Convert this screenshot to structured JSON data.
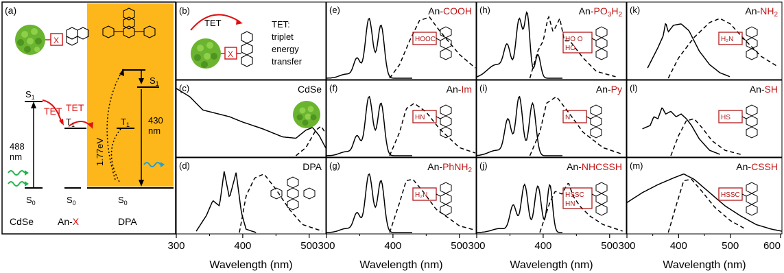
{
  "figure": {
    "axis_label": "Wavelength (nm)",
    "columns": [
      {
        "ticks": [
          "300",
          "400",
          "500"
        ]
      },
      {
        "ticks": [
          "300",
          "400",
          "500"
        ]
      },
      {
        "ticks": [
          "300",
          "400",
          "500"
        ]
      },
      {
        "ticks": [
          "300",
          "400",
          "500",
          "600"
        ]
      }
    ]
  },
  "diagram_a": {
    "panel_label": "(a)",
    "S1_left": "S",
    "S1_left_sub": "1",
    "T1_mid": "T",
    "T1_mid_sub": "1",
    "T1_right": "T",
    "T1_right_sub": "1",
    "S1_right": "S",
    "S1_right_sub": "1",
    "S0_left": "S",
    "S0_left_sub": "0",
    "S0_mid": "S",
    "S0_mid_sub": "0",
    "S0_right": "S",
    "S0_right_sub": "0",
    "tet1": "TET",
    "tet2": "TET",
    "wl488": "488",
    "wl488_unit": "nm",
    "wl430": "430",
    "wl430_unit": "nm",
    "energy": "1.77eV",
    "x_box": "X",
    "label_cdse": "CdSe",
    "label_anx_prefix": "An-",
    "label_anx_x": "X",
    "label_dpa": "DPA",
    "colors": {
      "orange": "#fdb71a",
      "red": "#e01010",
      "green": "#22b24c",
      "cyan": "#1ba0d8",
      "dark_red": "#b01a1a"
    }
  },
  "panel_b": {
    "panel_label": "(b)",
    "tet": "TET",
    "x_box": "X",
    "desc": [
      "TET:",
      "triplet",
      "energy",
      "transfer"
    ]
  },
  "panels": [
    {
      "id": "c",
      "panel_label": "(c)",
      "name": "CdSe"
    },
    {
      "id": "d",
      "panel_label": "(d)",
      "name": "DPA"
    },
    {
      "id": "e",
      "panel_label": "(e)",
      "prefix": "An-",
      "suffix": "COOH",
      "struct": "HOOC"
    },
    {
      "id": "f",
      "panel_label": "(f)",
      "prefix": "An-",
      "suffix": "Im",
      "struct": "HN"
    },
    {
      "id": "g",
      "panel_label": "(g)",
      "prefix": "An-",
      "suffix": "PhNH",
      "suffix_sub": "2",
      "struct": "H₂N"
    },
    {
      "id": "h",
      "panel_label": "(h)",
      "prefix": "An-",
      "suffix": "PO",
      "suffix_sub": "3",
      "suffix_end": "H",
      "suffix_sub2": "2",
      "struct": "HO O",
      "struct2": "HO"
    },
    {
      "id": "i",
      "panel_label": "(i)",
      "prefix": "An-",
      "suffix": "Py",
      "struct": "N"
    },
    {
      "id": "j",
      "panel_label": "(j)",
      "prefix": "An-",
      "suffix": "NHCSSH",
      "struct": "HSSC",
      "struct2": "HN"
    },
    {
      "id": "k",
      "panel_label": "(k)",
      "prefix": "An-",
      "suffix": "NH",
      "suffix_sub": "2",
      "struct": "H₂N"
    },
    {
      "id": "l",
      "panel_label": "(l)",
      "prefix": "An-",
      "suffix": "SH",
      "struct": "HS"
    },
    {
      "id": "m",
      "panel_label": "(m)",
      "prefix": "An-",
      "suffix": "CSSH",
      "struct": "HSSC"
    }
  ],
  "chart_data": {
    "type": "line",
    "xlabel": "Wavelength (nm)",
    "xlim": [
      300,
      600
    ],
    "curves": {
      "anthracene_abs": [
        [
          300,
          0.05
        ],
        [
          320,
          0.06
        ],
        [
          335,
          0.1
        ],
        [
          345,
          0.3
        ],
        [
          350,
          0.42
        ],
        [
          355,
          0.38
        ],
        [
          362,
          0.62
        ],
        [
          366,
          0.88
        ],
        [
          370,
          0.64
        ],
        [
          376,
          0.62
        ],
        [
          382,
          0.78
        ],
        [
          386,
          0.55
        ],
        [
          392,
          0.2
        ],
        [
          400,
          0.04
        ],
        [
          420,
          0.01
        ]
      ],
      "cdse_abs": [
        [
          300,
          1.0
        ],
        [
          320,
          0.88
        ],
        [
          340,
          0.68
        ],
        [
          360,
          0.63
        ],
        [
          380,
          0.58
        ],
        [
          400,
          0.5
        ],
        [
          430,
          0.4
        ],
        [
          460,
          0.28
        ],
        [
          480,
          0.26
        ],
        [
          495,
          0.38
        ],
        [
          505,
          0.42
        ],
        [
          515,
          0.3
        ],
        [
          530,
          0.02
        ]
      ],
      "cdse_pl": [
        [
          480,
          0.0
        ],
        [
          495,
          0.12
        ],
        [
          510,
          0.38
        ],
        [
          518,
          0.44
        ],
        [
          530,
          0.25
        ],
        [
          545,
          0.05
        ],
        [
          560,
          0.0
        ]
      ],
      "dpa_abs": [
        [
          330,
          0.02
        ],
        [
          345,
          0.25
        ],
        [
          355,
          0.48
        ],
        [
          365,
          0.4
        ],
        [
          372,
          0.92
        ],
        [
          380,
          0.52
        ],
        [
          390,
          0.9
        ],
        [
          398,
          0.3
        ],
        [
          405,
          0.05
        ],
        [
          420,
          0.0
        ]
      ],
      "dpa_pl": [
        [
          395,
          0.0
        ],
        [
          405,
          0.55
        ],
        [
          418,
          0.82
        ],
        [
          432,
          0.88
        ],
        [
          450,
          0.65
        ],
        [
          470,
          0.35
        ],
        [
          490,
          0.12
        ],
        [
          520,
          0.02
        ]
      ],
      "cooh_pl": [
        [
          395,
          0.0
        ],
        [
          410,
          0.2
        ],
        [
          425,
          0.55
        ],
        [
          440,
          0.85
        ],
        [
          455,
          0.9
        ],
        [
          470,
          0.7
        ],
        [
          500,
          0.35
        ],
        [
          530,
          0.1
        ],
        [
          560,
          0.02
        ]
      ],
      "im_pl": [
        [
          395,
          0.0
        ],
        [
          410,
          0.35
        ],
        [
          420,
          0.7
        ],
        [
          432,
          0.78
        ],
        [
          450,
          0.65
        ],
        [
          470,
          0.4
        ],
        [
          500,
          0.12
        ],
        [
          530,
          0.02
        ]
      ],
      "phnh2_pl": [
        [
          395,
          0.0
        ],
        [
          410,
          0.45
        ],
        [
          420,
          0.78
        ],
        [
          430,
          0.8
        ],
        [
          445,
          0.62
        ],
        [
          465,
          0.35
        ],
        [
          500,
          0.1
        ],
        [
          530,
          0.02
        ]
      ],
      "po3h2_pl": [
        [
          380,
          0.0
        ],
        [
          392,
          0.4
        ],
        [
          400,
          0.55
        ],
        [
          408,
          0.92
        ],
        [
          415,
          0.68
        ],
        [
          425,
          0.88
        ],
        [
          432,
          0.55
        ],
        [
          440,
          0.55
        ],
        [
          460,
          0.3
        ],
        [
          480,
          0.1
        ],
        [
          510,
          0.02
        ]
      ],
      "py_pl": [
        [
          380,
          0.0
        ],
        [
          395,
          0.35
        ],
        [
          405,
          0.78
        ],
        [
          420,
          0.88
        ],
        [
          440,
          0.62
        ],
        [
          460,
          0.35
        ],
        [
          490,
          0.12
        ],
        [
          520,
          0.02
        ]
      ],
      "nhcssh_pl": [
        [
          395,
          0.0
        ],
        [
          410,
          0.45
        ],
        [
          418,
          0.62
        ],
        [
          428,
          0.58
        ],
        [
          438,
          0.75
        ],
        [
          445,
          0.55
        ],
        [
          455,
          0.4
        ],
        [
          470,
          0.25
        ],
        [
          490,
          0.12
        ],
        [
          520,
          0.02
        ]
      ],
      "nh2_abs": [
        [
          340,
          0.15
        ],
        [
          360,
          0.45
        ],
        [
          370,
          0.62
        ],
        [
          375,
          0.82
        ],
        [
          380,
          0.68
        ],
        [
          390,
          0.78
        ],
        [
          405,
          0.8
        ],
        [
          420,
          0.7
        ],
        [
          440,
          0.4
        ],
        [
          460,
          0.2
        ],
        [
          480,
          0.08
        ],
        [
          500,
          0.02
        ]
      ],
      "nh2_pl": [
        [
          380,
          0.0
        ],
        [
          400,
          0.3
        ],
        [
          430,
          0.6
        ],
        [
          460,
          0.82
        ],
        [
          480,
          0.88
        ],
        [
          500,
          0.8
        ],
        [
          530,
          0.55
        ],
        [
          560,
          0.32
        ],
        [
          590,
          0.18
        ]
      ],
      "sh_abs": [
        [
          330,
          0.4
        ],
        [
          345,
          0.45
        ],
        [
          352,
          0.58
        ],
        [
          360,
          0.55
        ],
        [
          368,
          0.72
        ],
        [
          375,
          0.62
        ],
        [
          385,
          0.66
        ],
        [
          395,
          0.58
        ],
        [
          405,
          0.62
        ],
        [
          415,
          0.55
        ],
        [
          425,
          0.45
        ],
        [
          440,
          0.25
        ],
        [
          460,
          0.08
        ],
        [
          480,
          0.02
        ]
      ],
      "sh_pl": [
        [
          385,
          0.0
        ],
        [
          400,
          0.3
        ],
        [
          415,
          0.52
        ],
        [
          430,
          0.55
        ],
        [
          445,
          0.42
        ],
        [
          465,
          0.22
        ],
        [
          490,
          0.08
        ],
        [
          520,
          0.02
        ]
      ],
      "cssh_abs": [
        [
          300,
          0.45
        ],
        [
          330,
          0.6
        ],
        [
          360,
          0.72
        ],
        [
          390,
          0.82
        ],
        [
          410,
          0.88
        ],
        [
          430,
          0.8
        ],
        [
          460,
          0.6
        ],
        [
          490,
          0.4
        ],
        [
          520,
          0.25
        ],
        [
          550,
          0.12
        ],
        [
          580,
          0.05
        ],
        [
          600,
          0.02
        ]
      ],
      "cssh_pl": [
        [
          380,
          0.0
        ],
        [
          395,
          0.4
        ],
        [
          410,
          0.78
        ],
        [
          425,
          0.8
        ],
        [
          445,
          0.62
        ],
        [
          470,
          0.38
        ],
        [
          500,
          0.18
        ],
        [
          530,
          0.05
        ]
      ]
    }
  }
}
